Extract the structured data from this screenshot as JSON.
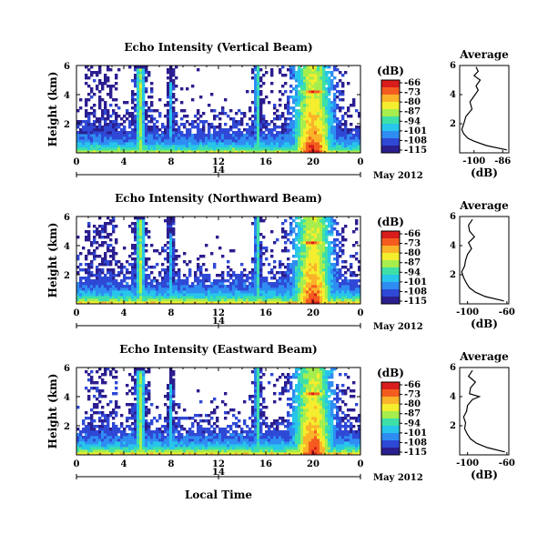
{
  "figure": {
    "xlabel": "Local Time",
    "date_label": "May 2012",
    "colorbar_unit": "(dB)",
    "colorbar_ticks": [
      "-66",
      "-73",
      "-80",
      "-87",
      "-94",
      "-101",
      "-108",
      "-115"
    ],
    "colormap": [
      "#2b1e8f",
      "#2f49d6",
      "#2f8df2",
      "#27c6ea",
      "#3fe0a8",
      "#a6ee4e",
      "#f4ee2e",
      "#fbb32a",
      "#f45c1f",
      "#d81d1c"
    ]
  },
  "chart_data": [
    {
      "type": "heatmap",
      "title": "Echo Intensity (Vertical Beam)",
      "ylabel": "Height (km)",
      "x_ticks": [
        "0",
        "4",
        "8",
        "12",
        "16",
        "20",
        "0"
      ],
      "y_ticks": [
        "2",
        "4",
        "6"
      ],
      "x_secondary_label": "14",
      "xlim": [
        0,
        24
      ],
      "ylim": [
        0,
        6
      ],
      "value_range": [
        -115,
        -66
      ],
      "profile": {
        "title": "Average",
        "xlabel": "(dB)",
        "x_ticks": [
          "-100",
          "-86"
        ],
        "y_ticks": [
          "2",
          "4",
          "6"
        ],
        "xlim": [
          -107,
          -83
        ],
        "height_km": [
          0.2,
          0.5,
          0.8,
          1.0,
          1.3,
          1.6,
          2.0,
          2.5,
          3.0,
          3.5,
          3.9,
          4.3,
          4.6,
          5.0,
          5.3,
          5.6,
          5.9
        ],
        "power_db": [
          -84,
          -94,
          -100,
          -103,
          -105,
          -106,
          -105,
          -104,
          -101,
          -102,
          -100,
          -98,
          -99,
          -97,
          -100,
          -98,
          -99
        ]
      }
    },
    {
      "type": "heatmap",
      "title": "Echo Intensity (Northward Beam)",
      "ylabel": "Height (km)",
      "x_ticks": [
        "0",
        "4",
        "8",
        "12",
        "16",
        "20",
        "0"
      ],
      "y_ticks": [
        "2",
        "4",
        "6"
      ],
      "x_secondary_label": "14",
      "xlim": [
        0,
        24
      ],
      "ylim": [
        0,
        6
      ],
      "value_range": [
        -115,
        -66
      ],
      "profile": {
        "title": "Average",
        "xlabel": "(dB)",
        "x_ticks": [
          "-100",
          "-60"
        ],
        "y_ticks": [
          "2",
          "4",
          "6"
        ],
        "xlim": [
          -108,
          -58
        ],
        "height_km": [
          0.2,
          0.5,
          0.8,
          1.1,
          1.4,
          1.8,
          2.2,
          2.6,
          3.0,
          3.4,
          3.8,
          4.2,
          4.6,
          5.0,
          5.4,
          5.8
        ],
        "power_db": [
          -63,
          -82,
          -92,
          -98,
          -101,
          -104,
          -106,
          -103,
          -102,
          -100,
          -96,
          -99,
          -93,
          -98,
          -99,
          -95
        ]
      }
    },
    {
      "type": "heatmap",
      "title": "Echo Intensity (Eastward Beam)",
      "ylabel": "Height (km)",
      "x_ticks": [
        "0",
        "4",
        "8",
        "12",
        "16",
        "20",
        "0"
      ],
      "y_ticks": [
        "2",
        "4",
        "6"
      ],
      "x_secondary_label": "14",
      "xlim": [
        0,
        24
      ],
      "ylim": [
        0,
        6
      ],
      "value_range": [
        -115,
        -66
      ],
      "profile": {
        "title": "Average",
        "xlabel": "(dB)",
        "x_ticks": [
          "-100",
          "-60"
        ],
        "y_ticks": [
          "2",
          "4",
          "6"
        ],
        "xlim": [
          -108,
          -58
        ],
        "height_km": [
          0.2,
          0.5,
          0.8,
          1.1,
          1.4,
          1.8,
          2.2,
          2.6,
          3.0,
          3.4,
          3.8,
          4.0,
          4.2,
          4.6,
          5.0,
          5.4,
          5.8
        ],
        "power_db": [
          -62,
          -80,
          -91,
          -97,
          -100,
          -103,
          -102,
          -104,
          -101,
          -100,
          -95,
          -88,
          -98,
          -97,
          -92,
          -99,
          -95
        ]
      }
    }
  ]
}
